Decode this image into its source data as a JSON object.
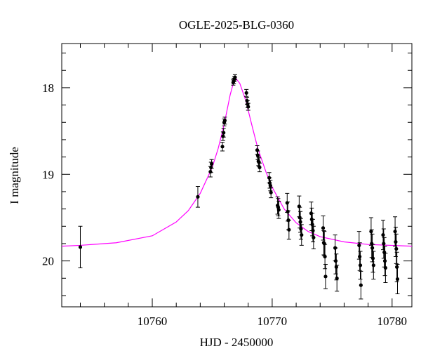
{
  "chart_data": {
    "type": "scatter",
    "title": "OGLE-2025-BLG-0360",
    "xlabel": "HJD - 2450000",
    "ylabel": "I magnitude",
    "color": "#000000",
    "x": [
      10754.0,
      10763.8,
      10764.85,
      10764.9,
      10764.95,
      10765.85,
      10765.9,
      10765.95,
      10766.0,
      10766.05,
      10766.75,
      10766.8,
      10766.85,
      10766.9,
      10767.85,
      10767.9,
      10767.95,
      10768.0,
      10768.75,
      10768.8,
      10768.85,
      10768.9,
      10768.95,
      10769.75,
      10769.8,
      10769.85,
      10769.9,
      10770.45,
      10770.5,
      10770.55,
      10771.25,
      10771.3,
      10771.35,
      10771.4,
      10772.25,
      10772.3,
      10772.35,
      10772.4,
      10772.45,
      10773.25,
      10773.3,
      10773.35,
      10773.4,
      10773.45,
      10774.25,
      10774.3,
      10774.35,
      10774.4,
      10774.45,
      10775.25,
      10775.3,
      10775.35,
      10775.4,
      10777.25,
      10777.3,
      10777.35,
      10777.4,
      10778.25,
      10778.3,
      10778.35,
      10778.4,
      10778.45,
      10779.25,
      10779.3,
      10779.35,
      10779.4,
      10779.45,
      10780.25,
      10780.3,
      10780.35,
      10780.4,
      10780.45
    ],
    "values": [
      19.84,
      19.26,
      18.97,
      18.92,
      18.88,
      18.68,
      18.56,
      18.52,
      18.4,
      18.38,
      17.94,
      17.92,
      17.9,
      17.88,
      18.06,
      18.15,
      18.19,
      18.22,
      18.72,
      18.78,
      18.85,
      18.86,
      18.92,
      19.04,
      19.1,
      19.13,
      19.21,
      19.36,
      19.38,
      19.41,
      19.33,
      19.43,
      19.53,
      19.64,
      19.37,
      19.5,
      19.55,
      19.63,
      19.7,
      19.45,
      19.52,
      19.58,
      19.65,
      19.73,
      19.62,
      19.79,
      19.8,
      19.95,
      20.18,
      19.85,
      20.0,
      20.07,
      20.2,
      19.82,
      19.95,
      20.05,
      20.28,
      19.66,
      19.8,
      19.85,
      19.97,
      20.05,
      19.7,
      19.8,
      19.9,
      20.0,
      20.08,
      19.66,
      19.78,
      19.86,
      20.07,
      20.21
    ],
    "errors": [
      0.24,
      0.12,
      0.06,
      0.06,
      0.05,
      0.05,
      0.05,
      0.05,
      0.04,
      0.04,
      0.03,
      0.03,
      0.03,
      0.03,
      0.04,
      0.04,
      0.04,
      0.04,
      0.05,
      0.05,
      0.05,
      0.05,
      0.05,
      0.06,
      0.06,
      0.06,
      0.06,
      0.1,
      0.1,
      0.1,
      0.11,
      0.11,
      0.11,
      0.11,
      0.12,
      0.12,
      0.12,
      0.12,
      0.12,
      0.13,
      0.13,
      0.13,
      0.13,
      0.13,
      0.14,
      0.14,
      0.14,
      0.14,
      0.14,
      0.15,
      0.15,
      0.15,
      0.15,
      0.16,
      0.16,
      0.16,
      0.16,
      0.16,
      0.16,
      0.16,
      0.16,
      0.16,
      0.17,
      0.17,
      0.17,
      0.17,
      0.17,
      0.17,
      0.17,
      0.17,
      0.17,
      0.17
    ],
    "fit": {
      "type": "line",
      "color": "#ff00ff",
      "x": [
        10752.45,
        10754,
        10757,
        10760,
        10762,
        10763,
        10764,
        10765,
        10765.5,
        10766,
        10766.5,
        10766.9,
        10767.3,
        10767.8,
        10768.3,
        10768.8,
        10769.5,
        10770,
        10771,
        10772,
        10773,
        10774,
        10776,
        10778,
        10781.65
      ],
      "values": [
        19.83,
        19.82,
        19.79,
        19.71,
        19.55,
        19.42,
        19.22,
        18.92,
        18.7,
        18.42,
        18.08,
        17.88,
        17.95,
        18.15,
        18.43,
        18.7,
        18.98,
        19.15,
        19.4,
        19.56,
        19.66,
        19.72,
        19.78,
        19.81,
        19.83
      ]
    },
    "xlim": [
      10752.45,
      10781.65
    ],
    "ylim": [
      20.53,
      17.49
    ],
    "xticks": [
      10760,
      10770,
      10780
    ],
    "yticks": [
      18,
      19,
      20
    ],
    "xminorticks": [
      10754,
      10756,
      10758,
      10762,
      10764,
      10766,
      10768,
      10772,
      10774,
      10776,
      10778
    ],
    "yminorticks": [
      17.6,
      17.8,
      18.2,
      18.4,
      18.6,
      18.8,
      19.2,
      19.4,
      19.6,
      19.8,
      20.2,
      20.4
    ]
  }
}
